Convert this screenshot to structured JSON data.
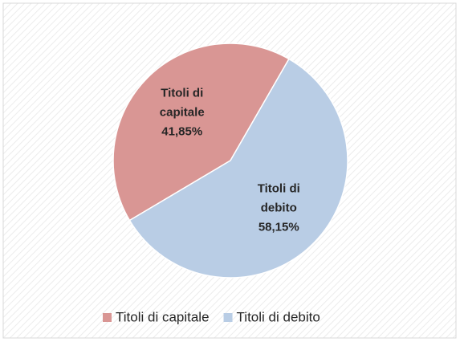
{
  "chart_data": {
    "type": "pie",
    "categories": [
      "Titoli di capitale",
      "Titoli di debito"
    ],
    "values": [
      41.85,
      58.15
    ],
    "value_labels": [
      "41,85%",
      "58,15%"
    ],
    "colors": [
      "#d99694",
      "#b9cde5"
    ],
    "legend": "bottom"
  }
}
